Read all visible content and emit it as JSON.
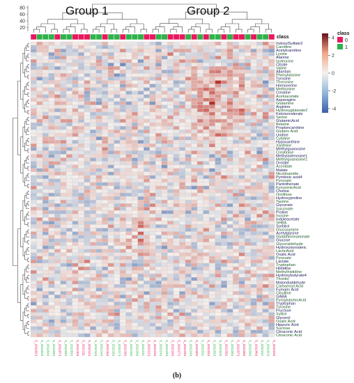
{
  "caption": "(b)",
  "chart_data": {
    "type": "heatmap",
    "groups": [
      "Group 1",
      "Group 2"
    ],
    "annotation_label": "class",
    "legend": {
      "title": "class",
      "levels": [
        "0",
        "1"
      ],
      "level_colors": [
        "#e8175d",
        "#2db24a"
      ],
      "scale_ticks": [
        4,
        2,
        0,
        -2,
        -4
      ],
      "scale_colors": [
        "#3b5fa8",
        "#8fb7dc",
        "#f4f1ee",
        "#f0a888",
        "#6a0f1a"
      ],
      "position": "right"
    },
    "dendrogram_ticks": [
      80,
      60,
      40,
      20
    ],
    "rows": [
      "IndoxylSulfate3",
      "Carnitine",
      "Acetylcarnitine",
      "Lysine",
      "Alanine",
      "Isoleucine",
      "Citrate",
      "Valine",
      "Allantoin",
      "Phenylalanine",
      "Tyrosine",
      "Threonine",
      "Homoserine",
      "Methionine",
      "Creatine",
      "Acetoacetate",
      "Asparagine",
      "Glutamine",
      "Arginine",
      "Hydroxyglutarate2",
      "Ketoisovalerate",
      "Serine",
      "GlutamicAcid",
      "Betaine",
      "Propioncarnitine",
      "Glutaric Acid",
      "Uridine",
      "Cytidine",
      "Hypoxanthine",
      "Xanthine",
      "Methylguanosine",
      "Creatinine",
      "Methyladenosine1",
      "Methylguanosine1",
      "Orotate",
      "Aconitate",
      "Malate",
      "Nicotinamide",
      "Pyridoxic acid4",
      "Pyruvate",
      "Pantothenate",
      "KynurenicAcid",
      "Choline",
      "Ornithine",
      "Hydroxyproline",
      "Taurine",
      "Glycerate",
      "Succinate",
      "Proline",
      "Inosine",
      "Indoleacetate",
      "SHBA",
      "Sorbitol",
      "Glucosamine",
      "Acetylglycine",
      "Glutathioneaminate",
      "Glucose",
      "Glyceraldehyde",
      "Hydroxyisovaleric",
      "LacticAcid",
      "Oxalic Acid",
      "Pyruvate",
      "Lactate",
      "Tryptophan",
      "Histidine",
      "Methylhistidine",
      "Hydroxybutyrate4",
      "Threitol",
      "Malondialdehyde",
      "Carbamoyl Acid",
      "Fumaric Acid",
      "Citrulline",
      "GABA",
      "PyroglutamicAcid",
      "Tryptophan",
      "Tyrosine",
      "Fructose",
      "Xylitol",
      "Glycerol",
      "Oxalic Acid",
      "Hippuric Acid",
      "Sucrose",
      "Citraconic Acid",
      "Citraconic Acid"
    ],
    "columns": [
      "S_1012021",
      "S_1012024",
      "S_1012041",
      "S_1012061",
      "S_1012071",
      "S_1012081",
      "S_1012091",
      "S_1012101",
      "S_1012111",
      "S_1012121",
      "S_1012131",
      "S_1012141",
      "S_1012151",
      "S_1012161",
      "S_1012171",
      "S_1012181",
      "S_1012191",
      "S_1012201",
      "S_1012211",
      "S_1012221",
      "S_1012231",
      "S_1012241",
      "S_1012251",
      "S_1012261",
      "S_1012271",
      "S_1012281",
      "S_1012291",
      "S_1012301",
      "S_1012311",
      "S_1012321",
      "S_1012331",
      "S_1012341",
      "S_1012351",
      "S_1012361",
      "S_1012371",
      "S_1012381",
      "S_1012391",
      "S_1012401",
      "S_1012411",
      "S_1012421",
      "S_1012431"
    ],
    "column_class": [
      0,
      1,
      1,
      1,
      0,
      1,
      1,
      0,
      0,
      0,
      1,
      1,
      0,
      1,
      1,
      0,
      1,
      1,
      1,
      0,
      0,
      1,
      1,
      0,
      0,
      0,
      1,
      0,
      1,
      0,
      1,
      1,
      0,
      1,
      0,
      0,
      1,
      0,
      1,
      1,
      0
    ]
  }
}
